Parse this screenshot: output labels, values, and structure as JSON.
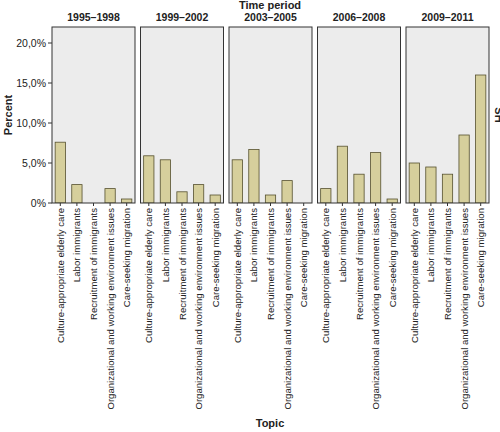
{
  "chart_data": {
    "type": "bar",
    "title": "Time period",
    "x_label": "Topic",
    "y_label": "Percent",
    "facet_label": "SH",
    "categories": [
      "Culture-appropriate elderly care",
      "Labor immigrants",
      "Recruitment of immigrants",
      "Organizational and working environment issues",
      "Care-seeking migration"
    ],
    "color": "#d6cf9c",
    "grid": false,
    "ylim": [
      0,
      22
    ],
    "yticks": [
      {
        "value": 0,
        "label": "0%"
      },
      {
        "value": 5,
        "label": "5,0%"
      },
      {
        "value": 10,
        "label": "10,0%"
      },
      {
        "value": 15,
        "label": "15,0%"
      },
      {
        "value": 20,
        "label": "20,0%"
      }
    ],
    "panels": [
      {
        "title": "1995–1998",
        "values": [
          7.6,
          2.3,
          0,
          1.8,
          0.5
        ]
      },
      {
        "title": "1999–2002",
        "values": [
          5.9,
          5.4,
          1.4,
          2.3,
          1.0
        ]
      },
      {
        "title": "2003–2005",
        "values": [
          5.4,
          6.7,
          1.0,
          2.8,
          0
        ]
      },
      {
        "title": "2006–2008",
        "values": [
          1.8,
          7.1,
          3.6,
          6.3,
          0.5
        ]
      },
      {
        "title": "2009–2011",
        "values": [
          5.0,
          4.5,
          3.6,
          8.5,
          16.0
        ]
      }
    ]
  }
}
